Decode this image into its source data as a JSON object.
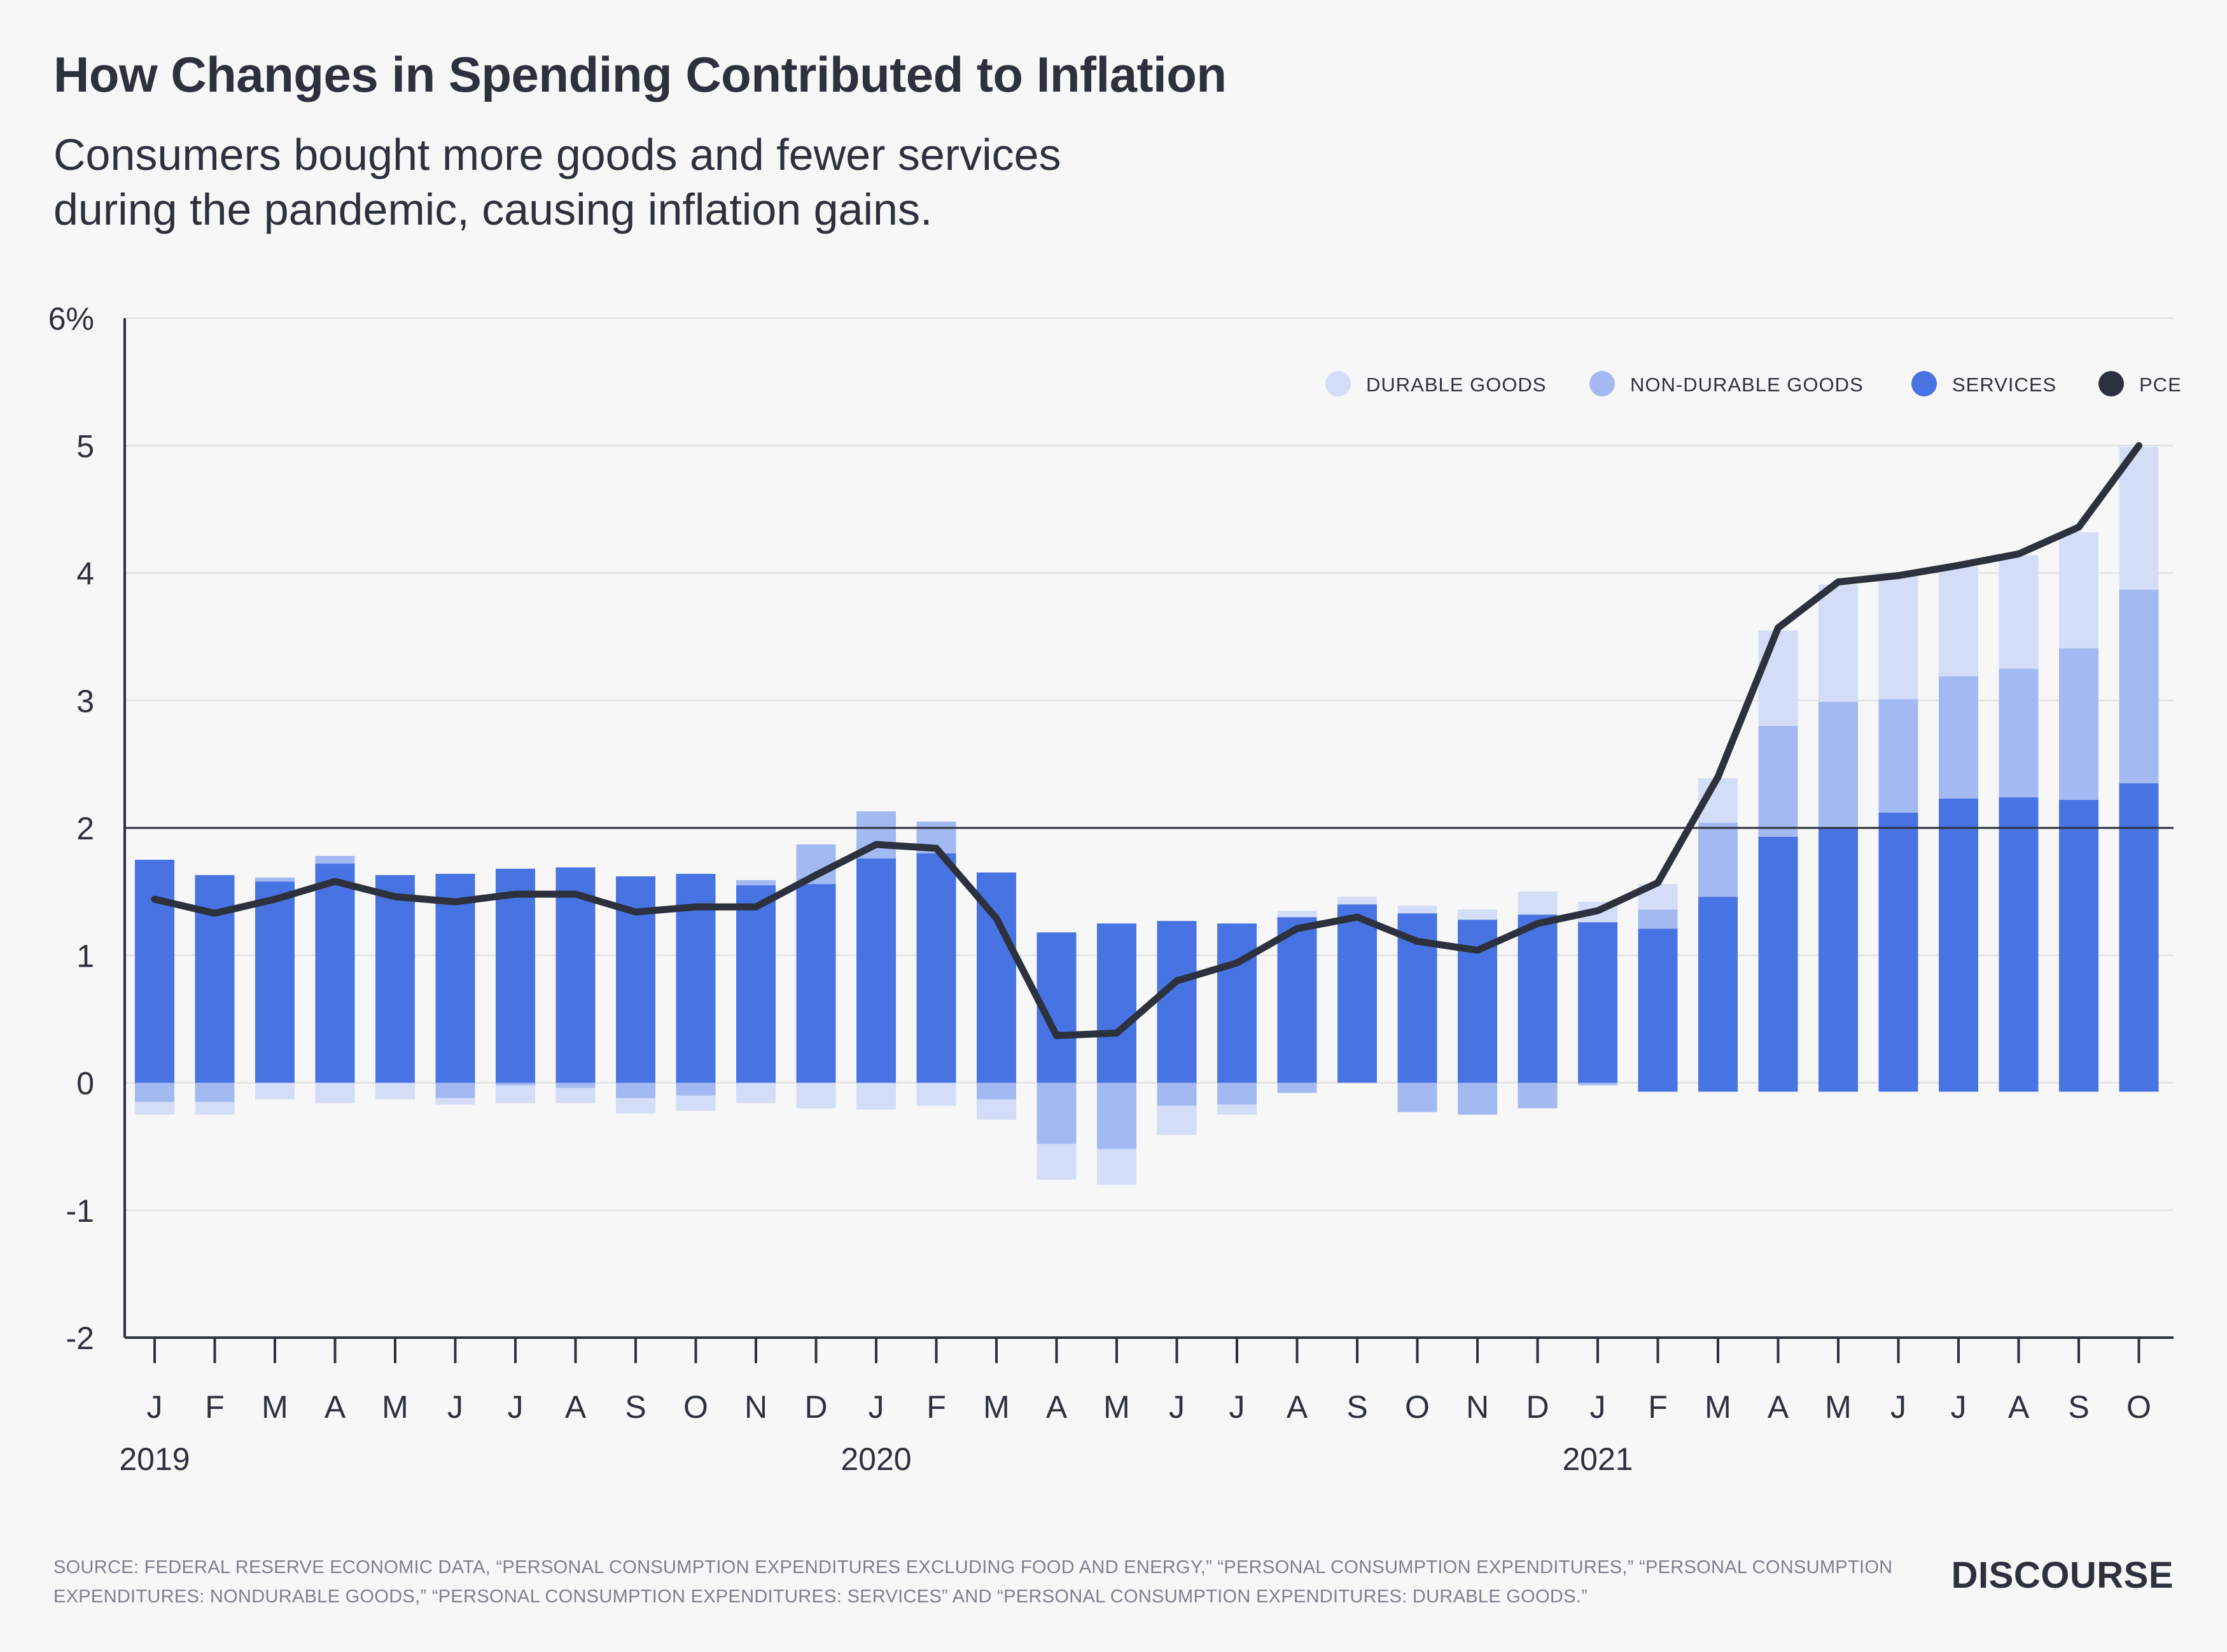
{
  "title": "How Changes in Spending Contributed to Inflation",
  "subtitle_lines": [
    "Consumers bought more goods and fewer services",
    "during the pandemic, causing inflation gains."
  ],
  "source": "SOURCE: FEDERAL RESERVE ECONOMIC DATA, “PERSONAL CONSUMPTION EXPENDITURES EXCLUDING FOOD AND ENERGY,” “PERSONAL CONSUMPTION EXPENDITURES,” “PERSONAL CONSUMPTION EXPENDITURES: NONDURABLE GOODS,” “PERSONAL CONSUMPTION EXPENDITURES: SERVICES” AND “PERSONAL CONSUMPTION EXPENDITURES: DURABLE GOODS.”",
  "brand": "DISCOURSE",
  "chart_data": {
    "type": "bar",
    "stacked": true,
    "ylim": [
      -2,
      6
    ],
    "yticks": [
      -2,
      -1,
      0,
      1,
      2,
      3,
      4,
      5,
      6
    ],
    "ytick_labels": [
      "-2",
      "-1",
      "0",
      "1",
      "2",
      "3",
      "4",
      "5",
      "6%"
    ],
    "reference_line": 2,
    "grid": true,
    "legend_position": "top-right",
    "categories": [
      "J",
      "F",
      "M",
      "A",
      "M",
      "J",
      "J",
      "A",
      "S",
      "O",
      "N",
      "D",
      "J",
      "F",
      "M",
      "A",
      "M",
      "J",
      "J",
      "A",
      "S",
      "O",
      "N",
      "D",
      "J",
      "F",
      "M",
      "A",
      "M",
      "J",
      "J",
      "A",
      "S",
      "O"
    ],
    "year_labels": [
      {
        "label": "2019",
        "index": 0
      },
      {
        "label": "2020",
        "index": 12
      },
      {
        "label": "2021",
        "index": 24
      }
    ],
    "series": [
      {
        "name": "SERVICES",
        "color": "#4874e3",
        "values": [
          1.75,
          1.63,
          1.58,
          1.72,
          1.63,
          1.64,
          1.68,
          1.69,
          1.62,
          1.64,
          1.55,
          1.56,
          1.76,
          1.8,
          1.65,
          1.18,
          1.25,
          1.27,
          1.25,
          1.3,
          1.4,
          1.33,
          1.28,
          1.32,
          1.26,
          1.21,
          1.46,
          1.93,
          2.0,
          2.12,
          2.23,
          2.24,
          2.22,
          2.35
        ]
      },
      {
        "name": "NON-DURABLE GOODS",
        "color": "#a3b9f1",
        "values": [
          -0.15,
          -0.15,
          0.03,
          0.06,
          0.0,
          -0.12,
          -0.02,
          -0.04,
          -0.12,
          -0.1,
          0.04,
          0.31,
          0.37,
          0.25,
          -0.13,
          -0.48,
          -0.52,
          -0.18,
          -0.17,
          -0.08,
          0.0,
          -0.23,
          -0.25,
          -0.2,
          -0.02,
          0.15,
          0.58,
          0.87,
          0.99,
          0.89,
          0.96,
          1.01,
          1.19,
          1.52
        ]
      },
      {
        "name": "DURABLE GOODS",
        "color": "#d3ddf8",
        "values": [
          -0.1,
          -0.1,
          -0.13,
          -0.16,
          -0.13,
          -0.05,
          -0.14,
          -0.12,
          -0.12,
          -0.12,
          -0.16,
          -0.2,
          -0.21,
          -0.18,
          -0.16,
          -0.28,
          -0.28,
          -0.23,
          -0.08,
          0.05,
          0.06,
          0.06,
          0.08,
          0.18,
          0.16,
          0.2,
          0.35,
          0.75,
          0.92,
          0.97,
          0.86,
          0.89,
          0.91,
          1.12
        ]
      },
      {
        "name": "PCE",
        "type": "line",
        "color": "#2c313d",
        "values": [
          1.44,
          1.33,
          1.44,
          1.58,
          1.46,
          1.42,
          1.48,
          1.48,
          1.34,
          1.38,
          1.38,
          1.63,
          1.87,
          1.84,
          1.29,
          0.37,
          0.39,
          0.8,
          0.94,
          1.21,
          1.3,
          1.11,
          1.04,
          1.25,
          1.35,
          1.57,
          2.4,
          3.57,
          3.93,
          3.98,
          4.06,
          4.15,
          4.36,
          5.0
        ]
      }
    ],
    "services_offset_2021": {
      "from_index": 25,
      "value": -0.07
    },
    "legend": [
      {
        "label": "DURABLE GOODS",
        "color": "#d3ddf8"
      },
      {
        "label": "NON-DURABLE GOODS",
        "color": "#a3b9f1"
      },
      {
        "label": "SERVICES",
        "color": "#4874e3"
      },
      {
        "label": "PCE",
        "color": "#2c313d"
      }
    ]
  }
}
